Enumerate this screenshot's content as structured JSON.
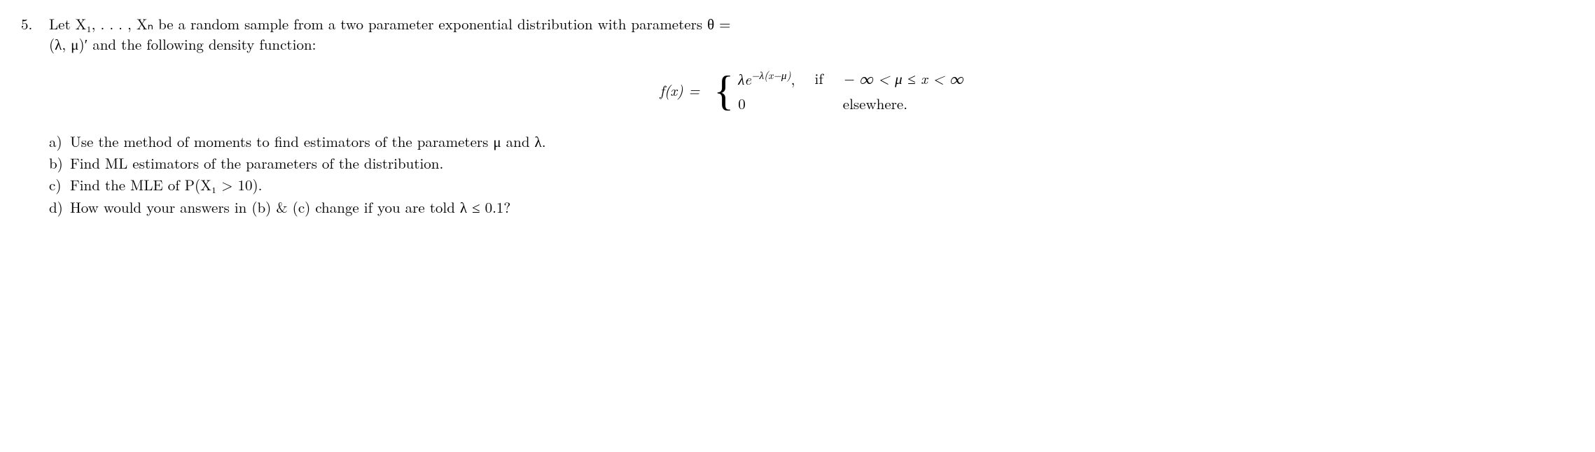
{
  "problem": {
    "number": "5.",
    "intro_line1": "Let X₁, . . . , Xₙ be a random sample from a two parameter exponential distribution with parameters θ =",
    "intro_line2": "(λ, μ)′ and the following density function:"
  },
  "formula": {
    "lhs": "f(x) =",
    "case1_expr": "λe",
    "case1_exp": "−λ(x−μ)",
    "case1_comma": ",",
    "case1_if": "if",
    "case1_cond": "− ∞ < μ ≤ x < ∞",
    "case2_expr": "0",
    "case2_if": "",
    "case2_cond": "elsewhere."
  },
  "parts": {
    "a": {
      "label": "a)",
      "text": "Use the method of moments to find estimators of the parameters μ and λ."
    },
    "b": {
      "label": "b)",
      "text": "Find ML estimators of the parameters of the distribution."
    },
    "c": {
      "label": "c)",
      "text": "Find the MLE of P(X₁ > 10)."
    },
    "d": {
      "label": "d)",
      "text": "How would your answers in (b) & (c) change if you are told λ ≤ 0.1?"
    }
  }
}
